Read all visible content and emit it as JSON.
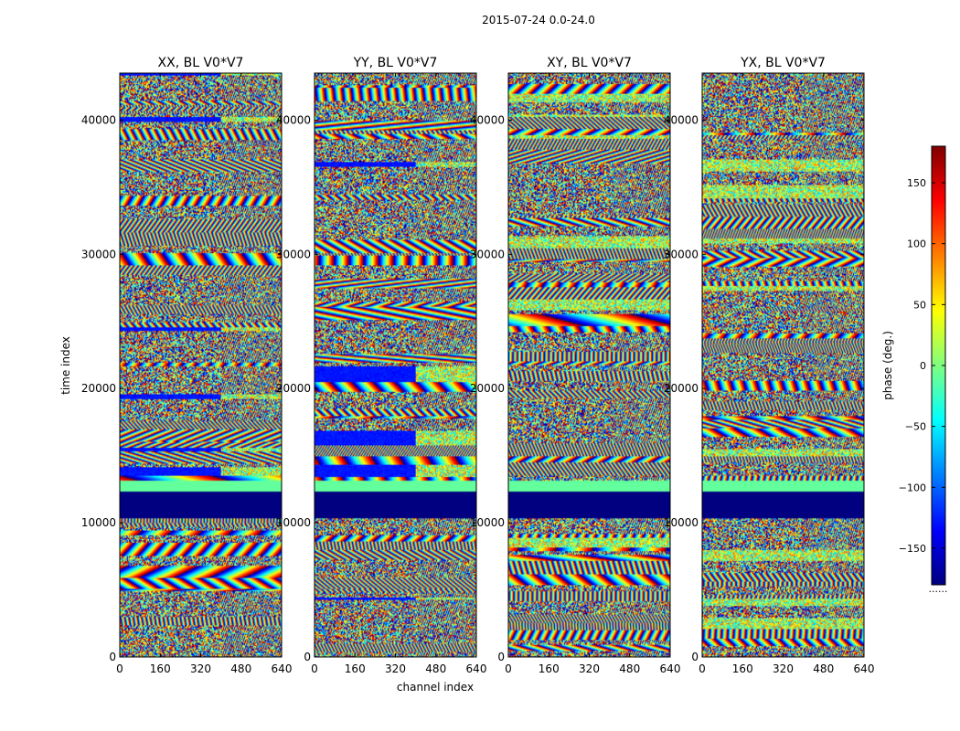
{
  "chart_data": {
    "type": "heatmap",
    "suptitle": "2015-07-24 0.0-24.0",
    "xlabel": "channel index",
    "ylabel": "time index",
    "colorbar": {
      "label": "phase (deg.)",
      "range": [
        -180,
        180
      ],
      "ticks": [
        -150,
        -100,
        -50,
        0,
        50,
        100,
        150
      ],
      "tick_labels": [
        "−150",
        "−100",
        "−50",
        "0",
        "50",
        "100",
        "150"
      ],
      "colormap": "jet",
      "colors": [
        "#00007f",
        "#0000ff",
        "#007fff",
        "#00ffff",
        "#7fff7f",
        "#ffff00",
        "#ff7f00",
        "#ff0000",
        "#7f0000"
      ]
    },
    "xlim": [
      0,
      640
    ],
    "ylim": [
      0,
      43500
    ],
    "xticks": [
      0,
      160,
      320,
      480,
      640
    ],
    "xtick_labels": [
      "0",
      "160",
      "320",
      "480",
      "640"
    ],
    "yticks": [
      0,
      10000,
      20000,
      30000,
      40000
    ],
    "ytick_labels": [
      "0",
      "10000",
      "20000",
      "30000",
      "40000"
    ],
    "panels": [
      {
        "title": "XX, BL V0*V7",
        "pol": "XX",
        "seed": 11
      },
      {
        "title": "YY, BL V0*V7",
        "pol": "YY",
        "seed": 23
      },
      {
        "title": "XY, BL V0*V7",
        "pol": "XY",
        "seed": 37
      },
      {
        "title": "YX, BL V0*V7",
        "pol": "YX",
        "seed": 51
      }
    ],
    "flagged_time_ranges": [
      [
        10300,
        12300
      ]
    ],
    "constant_phase_time_ranges": [
      [
        12300,
        13100
      ]
    ],
    "constant_phase_value": -10,
    "channel_break": 400,
    "colorbar_footer": "......"
  }
}
